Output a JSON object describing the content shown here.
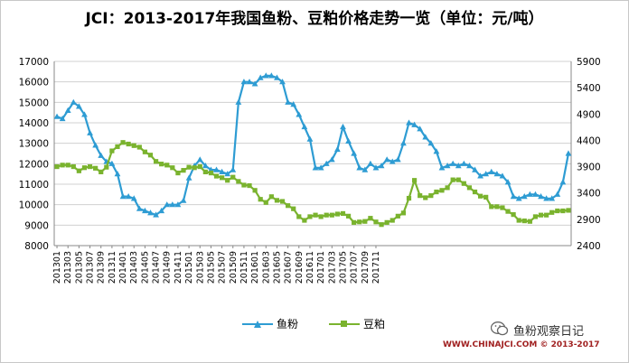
{
  "chart_data": {
    "type": "line",
    "title": "JCI：2013-2017年我国鱼粉、豆粕价格走势一览（单位：元/吨）",
    "x_tick_labels": [
      "201301",
      "201303",
      "201305",
      "201307",
      "201309",
      "201311",
      "201401",
      "201403",
      "201405",
      "201407",
      "201409",
      "201411",
      "201501",
      "201503",
      "201505",
      "201507",
      "201509",
      "201511",
      "201601",
      "201603",
      "201605",
      "201607",
      "201609",
      "201611",
      "201701",
      "201703",
      "201705",
      "201707",
      "201709",
      "201711"
    ],
    "y_left": {
      "ticks": [
        "8000",
        "9000",
        "10000",
        "11000",
        "12000",
        "13000",
        "14000",
        "15000",
        "16000",
        "17000"
      ],
      "ylim": [
        8000,
        17000
      ]
    },
    "y_right": {
      "ticks": [
        "2400",
        "2900",
        "3400",
        "3900",
        "4400",
        "4900",
        "5400",
        "5900"
      ],
      "ylim": [
        2400,
        5900
      ]
    },
    "grid": "horizontal",
    "legend_position": "bottom",
    "series": [
      {
        "name": "鱼粉",
        "axis": "left",
        "color": "#2e9cd3",
        "marker": "triangle",
        "values": [
          14300,
          14200,
          14600,
          15000,
          14800,
          14400,
          13500,
          12900,
          12400,
          12100,
          12000,
          11500,
          10400,
          10400,
          10300,
          9800,
          9700,
          9600,
          9500,
          9700,
          10000,
          10000,
          10000,
          10200,
          11300,
          11900,
          12200,
          11900,
          11700,
          11700,
          11600,
          11500,
          11700,
          15000,
          16000,
          16000,
          15900,
          16200,
          16300,
          16300,
          16200,
          16000,
          15000,
          14900,
          14400,
          13800,
          13200,
          11800,
          11800,
          12000,
          12200,
          12700,
          13800,
          13100,
          12500,
          11800,
          11700,
          12000,
          11800,
          11900,
          12200,
          12100,
          12200,
          13000,
          14000,
          13900,
          13700,
          13300,
          13000,
          12600,
          11800,
          11900,
          12000,
          11900,
          12000,
          11900,
          11700,
          11400,
          11500,
          11600,
          11500,
          11400,
          11100,
          10400,
          10300,
          10400,
          10500,
          10500,
          10400,
          10300,
          10300,
          10500,
          11100,
          12500
        ]
      },
      {
        "name": "豆粕",
        "axis": "right",
        "color": "#7ab32e",
        "marker": "square",
        "values": [
          3900,
          3930,
          3930,
          3900,
          3820,
          3880,
          3900,
          3870,
          3800,
          3890,
          4200,
          4280,
          4360,
          4330,
          4300,
          4270,
          4180,
          4120,
          4000,
          3950,
          3930,
          3880,
          3780,
          3830,
          3890,
          3880,
          3900,
          3800,
          3780,
          3720,
          3690,
          3640,
          3700,
          3620,
          3550,
          3540,
          3450,
          3280,
          3220,
          3330,
          3260,
          3240,
          3160,
          3100,
          2950,
          2880,
          2950,
          2980,
          2950,
          2980,
          2980,
          3000,
          3010,
          2960,
          2840,
          2850,
          2860,
          2920,
          2850,
          2800,
          2840,
          2880,
          2960,
          3020,
          3300,
          3640,
          3350,
          3310,
          3350,
          3420,
          3450,
          3500,
          3650,
          3650,
          3580,
          3500,
          3420,
          3340,
          3320,
          3140,
          3140,
          3120,
          3050,
          2990,
          2880,
          2870,
          2860,
          2950,
          2980,
          2980,
          3030,
          3060,
          3060,
          3070
        ]
      }
    ]
  },
  "legend": {
    "fishmeal": "鱼粉",
    "soymeal": "豆粕"
  },
  "watermarks": {
    "account": "鱼粉观察日记",
    "footer": "WWW.CHINAJCI.COM © 2013-2017"
  },
  "colors": {
    "fishmeal": "#2e9cd3",
    "soymeal": "#7ab32e",
    "footer": "#a02020"
  }
}
